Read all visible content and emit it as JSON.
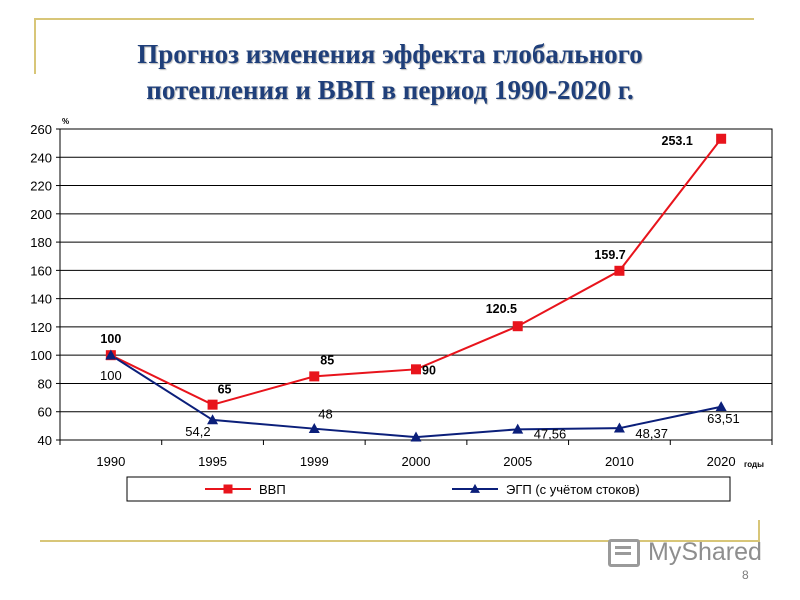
{
  "slide": {
    "title_line1": "Прогноз изменения эффекта глобального",
    "title_line2": "потепления и ВВП в период 1990-2020 г.",
    "page_number": "8",
    "watermark": "MyShared"
  },
  "chart_data": {
    "type": "line",
    "categories": [
      "1990",
      "1995",
      "1999",
      "2000",
      "2005",
      "2010",
      "2020"
    ],
    "x_unit_label": "годы",
    "y_unit_label": "%",
    "ylim": [
      40,
      260
    ],
    "yticks": [
      40,
      60,
      80,
      100,
      120,
      140,
      160,
      180,
      200,
      220,
      240,
      260
    ],
    "grid": true,
    "legend_position": "bottom",
    "series": [
      {
        "name": "ВВП",
        "color": "#e8141c",
        "marker": "square",
        "values": [
          100,
          65,
          85,
          90,
          120.5,
          159.7,
          253.1
        ],
        "labels": [
          "100",
          "65",
          "85",
          "90",
          "120.5",
          "159.7",
          "253.1"
        ]
      },
      {
        "name": "ЭГП (с учётом стоков)",
        "color": "#0b1f7a",
        "marker": "triangle",
        "values": [
          100,
          54.2,
          48,
          42,
          47.56,
          48.37,
          63.51
        ],
        "labels": [
          "100",
          "54,2",
          "48",
          "",
          "47,56",
          "48,37",
          "63,51"
        ]
      }
    ]
  }
}
